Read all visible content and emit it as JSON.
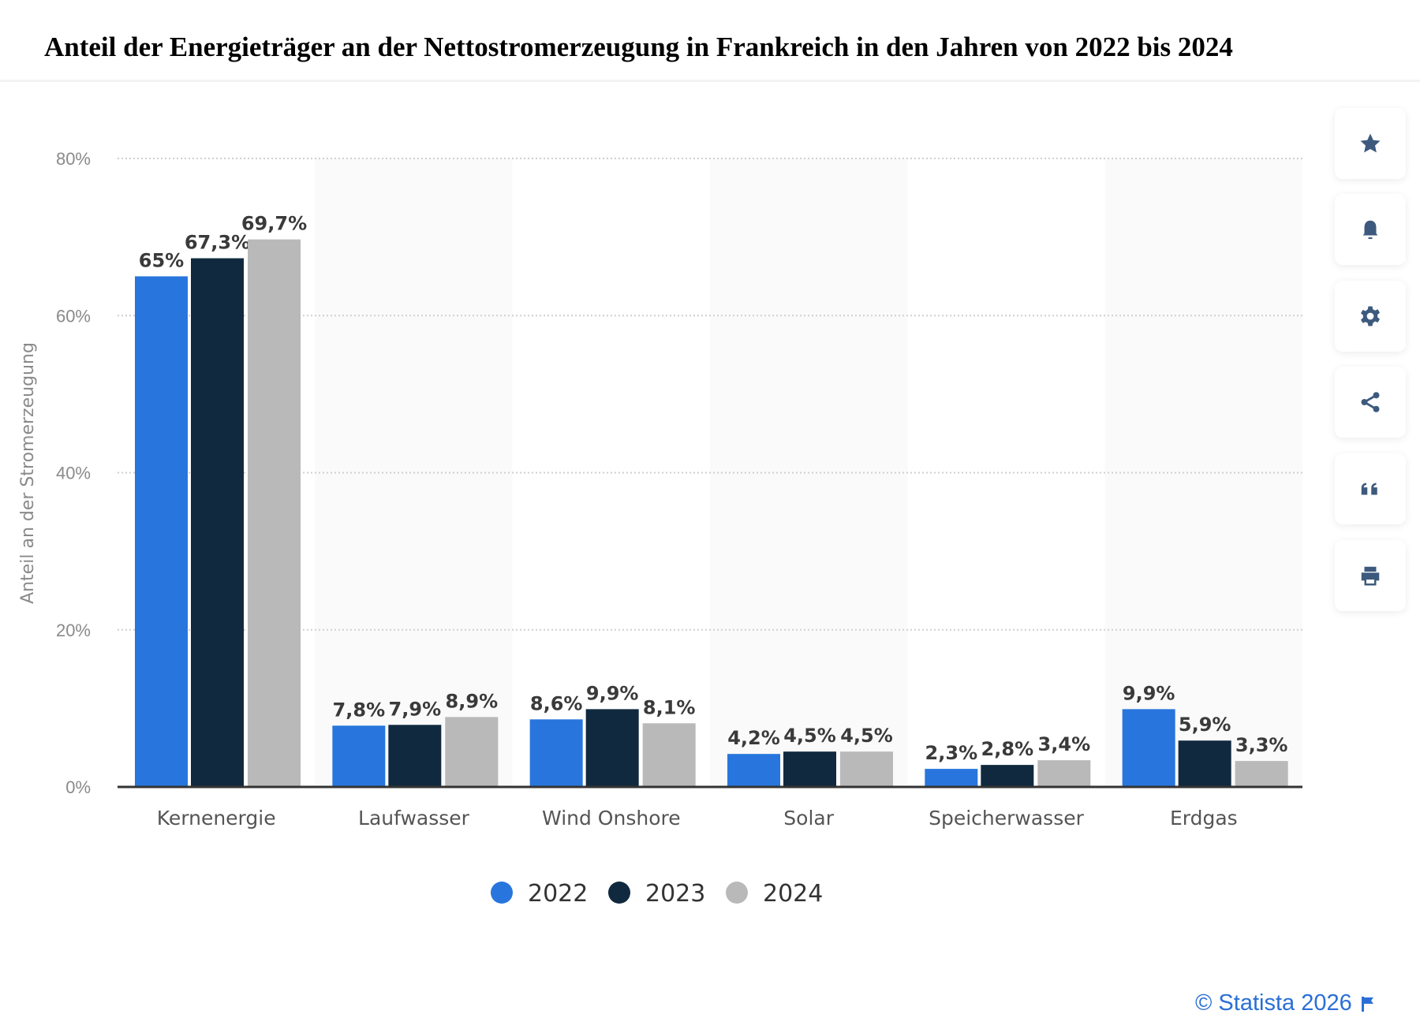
{
  "header": {
    "title": "Anteil der Energieträger an der Nettostromerzeugung in Frankreich in den Jahren von 2022 bis 2024"
  },
  "sidebar": {
    "buttons": [
      {
        "icon": "star-icon"
      },
      {
        "icon": "bell-icon"
      },
      {
        "icon": "gear-icon"
      },
      {
        "icon": "share-icon"
      },
      {
        "icon": "quote-icon"
      },
      {
        "icon": "print-icon"
      }
    ]
  },
  "footer": {
    "text": "© Statista 2026",
    "icon": "flag-icon"
  },
  "colors": {
    "s2022": "#2876dd",
    "s2023": "#10293f",
    "s2024": "#b9b9b9",
    "icons": "#3d5a7e"
  },
  "chart_data": {
    "type": "bar",
    "title": "Anteil der Energieträger an der Nettostromerzeugung in Frankreich in den Jahren von 2022 bis 2024",
    "xlabel": "",
    "ylabel": "Anteil an der Stromerzeugung",
    "ylim": [
      0,
      80
    ],
    "yticks": [
      0,
      20,
      40,
      60,
      80
    ],
    "ytick_labels": [
      "0%",
      "20%",
      "40%",
      "60%",
      "80%"
    ],
    "grid": true,
    "legend_position": "bottom-center",
    "categories": [
      "Kernenergie",
      "Laufwasser",
      "Wind Onshore",
      "Solar",
      "Speicherwasser",
      "Erdgas"
    ],
    "series": [
      {
        "name": "2022",
        "color": "#2876dd",
        "values": [
          65,
          7.8,
          8.6,
          4.2,
          2.3,
          9.9
        ],
        "labels": [
          "65%",
          "7,8%",
          "8,6%",
          "4,2%",
          "2,3%",
          "9,9%"
        ]
      },
      {
        "name": "2023",
        "color": "#10293f",
        "values": [
          67.3,
          7.9,
          9.9,
          4.5,
          2.8,
          5.9
        ],
        "labels": [
          "67,3%",
          "7,9%",
          "9,9%",
          "4,5%",
          "2,8%",
          "5,9%"
        ]
      },
      {
        "name": "2024",
        "color": "#b9b9b9",
        "values": [
          69.7,
          8.9,
          8.1,
          4.5,
          3.4,
          3.3
        ],
        "labels": [
          "69,7%",
          "8,9%",
          "8,1%",
          "4,5%",
          "3,4%",
          "3,3%"
        ]
      }
    ]
  }
}
